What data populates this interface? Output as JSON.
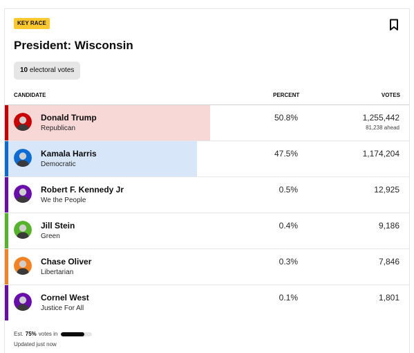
{
  "race": {
    "badge": "KEY RACE",
    "title": "President: Wisconsin",
    "electoral_votes": "10",
    "electoral_votes_label": "electoral votes"
  },
  "table": {
    "headers": {
      "candidate": "CANDIDATE",
      "percent": "PERCENT",
      "votes": "VOTES"
    },
    "rows": [
      {
        "name": "Donald Trump",
        "party": "Republican",
        "percent": "50.8%",
        "votes": "1,255,442",
        "ahead": "81,238 ahead",
        "color": "#cc0000",
        "fill_color": "#f8d7d7",
        "fill_pct": 50.8,
        "avatar_bg": "#cc0000",
        "leader": true
      },
      {
        "name": "Kamala Harris",
        "party": "Democratic",
        "percent": "47.5%",
        "votes": "1,174,204",
        "ahead": "",
        "color": "#0b6cd6",
        "fill_color": "#d7e6f8",
        "fill_pct": 47.5,
        "avatar_bg": "#0b6cd6",
        "leader": false
      },
      {
        "name": "Robert F. Kennedy Jr",
        "party": "We the People",
        "percent": "0.5%",
        "votes": "12,925",
        "ahead": "",
        "color": "#6a0dad",
        "fill_color": "",
        "fill_pct": 0,
        "avatar_bg": "#6a0dad",
        "leader": false
      },
      {
        "name": "Jill Stein",
        "party": "Green",
        "percent": "0.4%",
        "votes": "9,186",
        "ahead": "",
        "color": "#56b42b",
        "fill_color": "",
        "fill_pct": 0,
        "avatar_bg": "#56b42b",
        "leader": false
      },
      {
        "name": "Chase Oliver",
        "party": "Libertarian",
        "percent": "0.3%",
        "votes": "7,846",
        "ahead": "",
        "color": "#f58220",
        "fill_color": "",
        "fill_pct": 0,
        "avatar_bg": "#f58220",
        "leader": false
      },
      {
        "name": "Cornel West",
        "party": "Justice For All",
        "percent": "0.1%",
        "votes": "1,801",
        "ahead": "",
        "color": "#6a0dad",
        "fill_color": "",
        "fill_pct": 0,
        "avatar_bg": "#6a0dad",
        "leader": false
      }
    ]
  },
  "footer": {
    "est_prefix": "Est.",
    "est_value": "75%",
    "est_suffix": "votes in",
    "reporting_pct": 75,
    "updated": "Updated just now"
  },
  "icons": {
    "bookmark": "bookmark-icon"
  }
}
